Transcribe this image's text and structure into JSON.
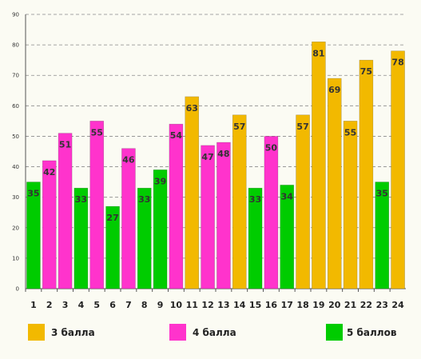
{
  "chart_data": {
    "type": "bar",
    "categories": [
      "1",
      "2",
      "3",
      "4",
      "5",
      "6",
      "7",
      "8",
      "9",
      "10",
      "11",
      "12",
      "13",
      "14",
      "15",
      "16",
      "17",
      "18",
      "19",
      "20",
      "21",
      "22",
      "23",
      "24"
    ],
    "values": [
      35,
      42,
      51,
      33,
      55,
      27,
      46,
      33,
      39,
      54,
      63,
      47,
      48,
      57,
      33,
      50,
      34,
      57,
      81,
      69,
      55,
      75,
      35,
      78
    ],
    "groups": [
      "g5",
      "g4",
      "g4",
      "g5",
      "g4",
      "g5",
      "g4",
      "g5",
      "g5",
      "g4",
      "g3",
      "g4",
      "g4",
      "g3",
      "g5",
      "g4",
      "g5",
      "g3",
      "g3",
      "g3",
      "g3",
      "g3",
      "g5",
      "g3"
    ],
    "ylim": [
      0,
      90
    ],
    "yticks": [
      0,
      10,
      20,
      30,
      40,
      50,
      60,
      70,
      80,
      90
    ],
    "grid": true,
    "legend_position": "bottom",
    "legend": [
      {
        "key": "g3",
        "label": "3 балла",
        "color": "#f2b900"
      },
      {
        "key": "g4",
        "label": "4 балла",
        "color": "#ff33cc"
      },
      {
        "key": "g5",
        "label": "5 баллов",
        "color": "#00cc00"
      }
    ]
  }
}
